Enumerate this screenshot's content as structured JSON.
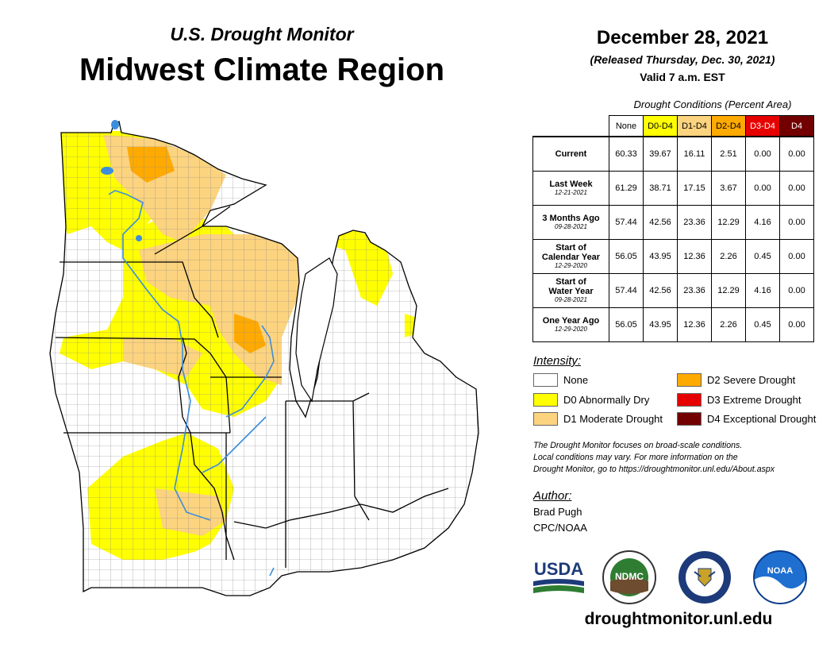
{
  "header": {
    "subtitle": "U.S. Drought Monitor",
    "title": "Midwest Climate Region"
  },
  "date_block": {
    "date": "December 28, 2021",
    "released": "(Released Thursday, Dec. 30, 2021)",
    "valid": "Valid 7 a.m. EST"
  },
  "table": {
    "caption": "Drought Conditions (Percent Area)",
    "columns": [
      {
        "label": "None",
        "color": "#ffffff",
        "text_color": "#000000"
      },
      {
        "label": "D0-D4",
        "color": "#ffff00",
        "text_color": "#000000"
      },
      {
        "label": "D1-D4",
        "color": "#fcd37f",
        "text_color": "#000000"
      },
      {
        "label": "D2-D4",
        "color": "#ffaa00",
        "text_color": "#000000"
      },
      {
        "label": "D3-D4",
        "color": "#e60000",
        "text_color": "#ffffff"
      },
      {
        "label": "D4",
        "color": "#730000",
        "text_color": "#ffffff"
      }
    ],
    "rows": [
      {
        "label": "Current",
        "date": "",
        "values": [
          "60.33",
          "39.67",
          "16.11",
          "2.51",
          "0.00",
          "0.00"
        ]
      },
      {
        "label": "Last Week",
        "date": "12-21-2021",
        "values": [
          "61.29",
          "38.71",
          "17.15",
          "3.67",
          "0.00",
          "0.00"
        ]
      },
      {
        "label": "3 Months Ago",
        "date": "09-28-2021",
        "values": [
          "57.44",
          "42.56",
          "23.36",
          "12.29",
          "4.16",
          "0.00"
        ]
      },
      {
        "label": "Start of Calendar Year",
        "date": "12-29-2020",
        "values": [
          "56.05",
          "43.95",
          "12.36",
          "2.26",
          "0.45",
          "0.00"
        ]
      },
      {
        "label": "Start of Water Year",
        "date": "09-28-2021",
        "values": [
          "57.44",
          "42.56",
          "23.36",
          "12.29",
          "4.16",
          "0.00"
        ]
      },
      {
        "label": "One Year Ago",
        "date": "12-29-2020",
        "values": [
          "56.05",
          "43.95",
          "12.36",
          "2.26",
          "0.45",
          "0.00"
        ]
      }
    ]
  },
  "legend": {
    "title": "Intensity:",
    "items": [
      {
        "label": "None",
        "color": "#ffffff"
      },
      {
        "label": "D0 Abnormally Dry",
        "color": "#ffff00"
      },
      {
        "label": "D1 Moderate Drought",
        "color": "#fcd37f"
      },
      {
        "label": "D2 Severe Drought",
        "color": "#ffaa00"
      },
      {
        "label": "D3 Extreme Drought",
        "color": "#e60000"
      },
      {
        "label": "D4 Exceptional Drought",
        "color": "#730000"
      }
    ]
  },
  "note": {
    "line1": "The Drought Monitor focuses on broad-scale conditions.",
    "line2": "Local conditions may vary. For more information on the",
    "line3": "Drought Monitor, go to https://droughtmonitor.unl.edu/About.aspx"
  },
  "author": {
    "title": "Author:",
    "name": "Brad Pugh",
    "org": "CPC/NOAA"
  },
  "logos": {
    "usda": "USDA",
    "ndmc": "NDMC",
    "noaa": "NOAA"
  },
  "url": "droughtmonitor.unl.edu"
}
